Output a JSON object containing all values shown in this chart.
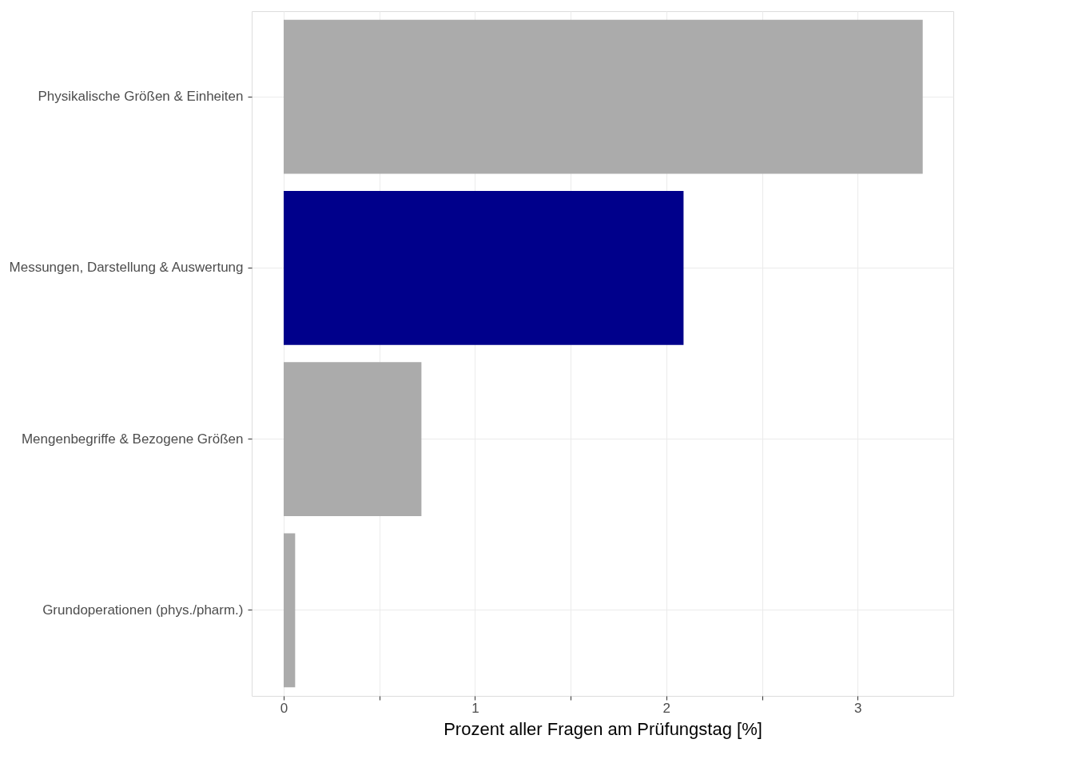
{
  "chart_data": {
    "type": "bar",
    "orientation": "horizontal",
    "xlabel": "Prozent aller Fragen am Prüfungstag [%]",
    "categories": [
      "Physikalische Größen & Einheiten",
      "Messungen, Darstellung & Auswertung",
      "Mengenbegriffe & Bezogene Größen",
      "Grundoperationen (phys./pharm.)"
    ],
    "values": [
      3.34,
      2.09,
      0.72,
      0.06
    ],
    "colors": [
      "#ababab",
      "#00008b",
      "#ababab",
      "#ababab"
    ],
    "xlim": [
      -0.167,
      3.5
    ],
    "xticks": [
      0,
      {
        "value": 0.5,
        "label": null
      },
      1,
      {
        "value": 1.5,
        "label": null
      },
      2,
      {
        "value": 2.5,
        "label": null
      },
      3
    ],
    "grid": true
  }
}
